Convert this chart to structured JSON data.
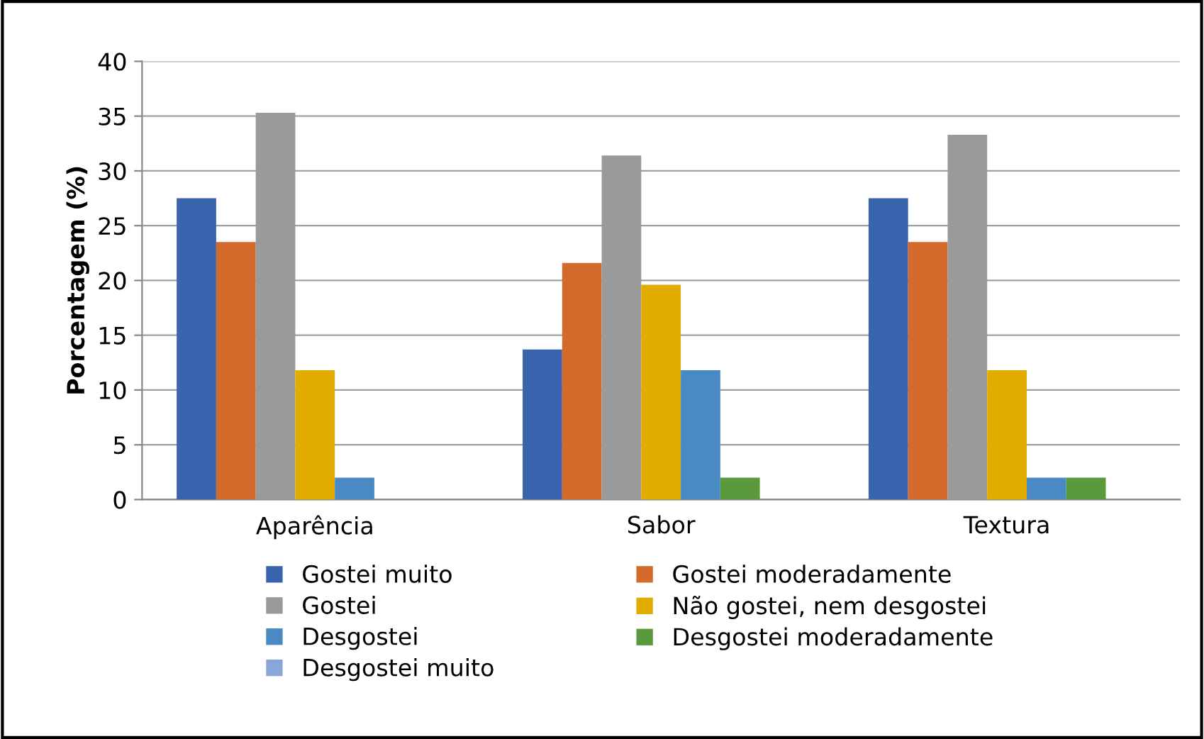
{
  "chart_data": {
    "type": "bar",
    "ylabel": "Porcentagem (%)",
    "categories": [
      "Aparência",
      "Sabor",
      "Textura"
    ],
    "series": [
      {
        "name": "Gostei muito",
        "color": "#3a64ad",
        "values": [
          27.5,
          13.7,
          27.5
        ]
      },
      {
        "name": "Gostei moderadamente",
        "color": "#d46a2c",
        "values": [
          23.5,
          21.6,
          23.5
        ]
      },
      {
        "name": "Gostei",
        "color": "#9a9a9a",
        "values": [
          35.3,
          31.4,
          33.3
        ]
      },
      {
        "name": "Não gostei, nem desgostei",
        "color": "#e3ac00",
        "values": [
          11.8,
          19.6,
          11.8
        ]
      },
      {
        "name": "Desgostei",
        "color": "#4a8ac4",
        "values": [
          2.0,
          11.8,
          2.0
        ]
      },
      {
        "name": "Desgostei moderadamente",
        "color": "#5a9a3c",
        "values": [
          0,
          2.0,
          2.0
        ]
      },
      {
        "name": "Desgostei muito",
        "color": "#8aa6d8",
        "values": [
          0,
          0,
          0
        ]
      }
    ],
    "ylim": [
      0,
      40
    ],
    "yticks": [
      0,
      5,
      10,
      15,
      20,
      25,
      30,
      35,
      40
    ],
    "grid": "y",
    "legend": "bottom"
  }
}
